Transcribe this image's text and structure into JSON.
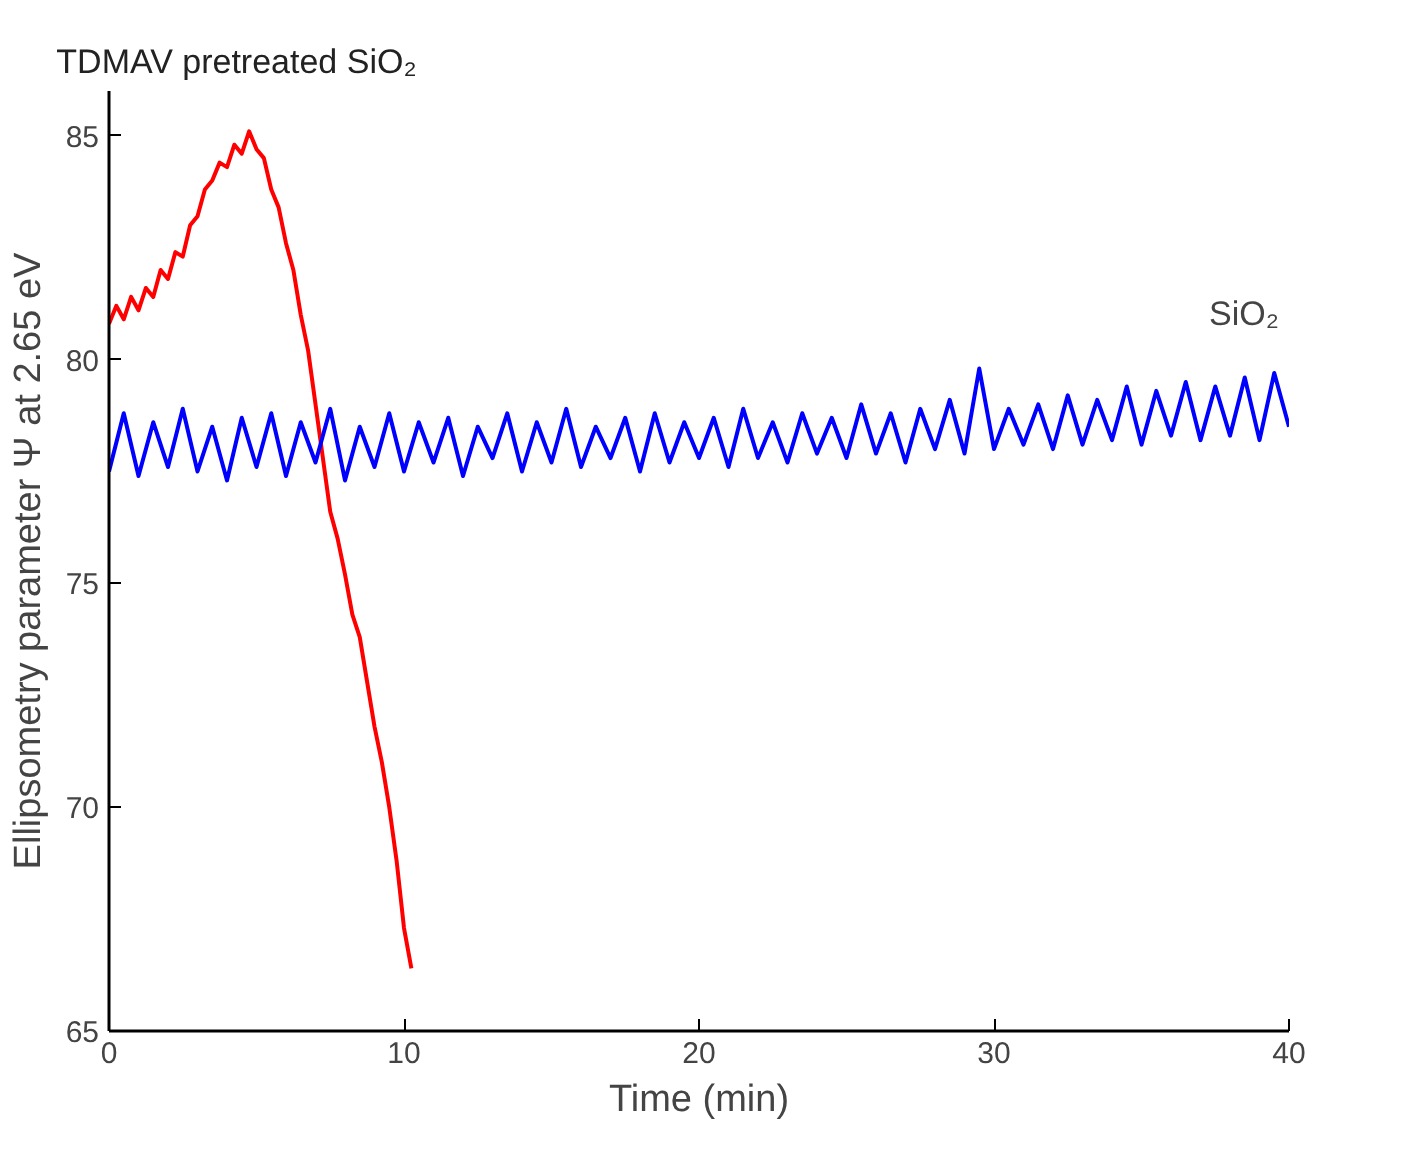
{
  "chart_data": {
    "type": "line",
    "xlabel": "Time (min)",
    "ylabel": "Ellipsometry parameter Ψ at 2.65 eV",
    "xlim": [
      0,
      40
    ],
    "ylim": [
      65,
      86
    ],
    "xticks": [
      0,
      10,
      20,
      30,
      40
    ],
    "yticks": [
      65,
      70,
      75,
      80,
      85
    ],
    "grid": false,
    "legend": false,
    "series": [
      {
        "name": "TDMAV pretreated SiO₂",
        "color": "#ff0000",
        "x": [
          0,
          0.25,
          0.5,
          0.75,
          1,
          1.25,
          1.5,
          1.75,
          2,
          2.25,
          2.5,
          2.75,
          3,
          3.25,
          3.5,
          3.75,
          4,
          4.25,
          4.5,
          4.75,
          5,
          5.25,
          5.5,
          5.75,
          6,
          6.25,
          6.5,
          6.75,
          7,
          7.25,
          7.5,
          7.75,
          8,
          8.25,
          8.5,
          8.75,
          9,
          9.25,
          9.5,
          9.75,
          10,
          10.25
        ],
        "values": [
          80.8,
          81.2,
          80.9,
          81.4,
          81.1,
          81.6,
          81.4,
          82.0,
          81.8,
          82.4,
          82.3,
          83.0,
          83.2,
          83.8,
          84.0,
          84.4,
          84.3,
          84.8,
          84.6,
          85.1,
          84.7,
          84.5,
          83.8,
          83.4,
          82.6,
          82.0,
          81.0,
          80.2,
          79.0,
          77.8,
          76.6,
          76.0,
          75.2,
          74.3,
          73.8,
          72.8,
          71.8,
          71.0,
          70.0,
          68.8,
          67.3,
          66.4
        ]
      },
      {
        "name": "SiO₂",
        "color": "#0000ff",
        "x": [
          0,
          0.5,
          1,
          1.5,
          2,
          2.5,
          3,
          3.5,
          4,
          4.5,
          5,
          5.5,
          6,
          6.5,
          7,
          7.5,
          8,
          8.5,
          9,
          9.5,
          10,
          10.5,
          11,
          11.5,
          12,
          12.5,
          13,
          13.5,
          14,
          14.5,
          15,
          15.5,
          16,
          16.5,
          17,
          17.5,
          18,
          18.5,
          19,
          19.5,
          20,
          20.5,
          21,
          21.5,
          22,
          22.5,
          23,
          23.5,
          24,
          24.5,
          25,
          25.5,
          26,
          26.5,
          27,
          27.5,
          28,
          28.5,
          29,
          29.5,
          30,
          30.5,
          31,
          31.5,
          32,
          32.5,
          33,
          33.5,
          34,
          34.5,
          35,
          35.5,
          36,
          36.5,
          37,
          37.5,
          38,
          38.5,
          39,
          39.5,
          40
        ],
        "values": [
          77.5,
          78.8,
          77.4,
          78.6,
          77.6,
          78.9,
          77.5,
          78.5,
          77.3,
          78.7,
          77.6,
          78.8,
          77.4,
          78.6,
          77.7,
          78.9,
          77.3,
          78.5,
          77.6,
          78.8,
          77.5,
          78.6,
          77.7,
          78.7,
          77.4,
          78.5,
          77.8,
          78.8,
          77.5,
          78.6,
          77.7,
          78.9,
          77.6,
          78.5,
          77.8,
          78.7,
          77.5,
          78.8,
          77.7,
          78.6,
          77.8,
          78.7,
          77.6,
          78.9,
          77.8,
          78.6,
          77.7,
          78.8,
          77.9,
          78.7,
          77.8,
          79.0,
          77.9,
          78.8,
          77.7,
          78.9,
          78.0,
          79.1,
          77.9,
          79.8,
          78.0,
          78.9,
          78.1,
          79.0,
          78.0,
          79.2,
          78.1,
          79.1,
          78.2,
          79.4,
          78.1,
          79.3,
          78.3,
          79.5,
          78.2,
          79.4,
          78.3,
          79.6,
          78.2,
          79.7,
          78.5
        ]
      }
    ]
  }
}
